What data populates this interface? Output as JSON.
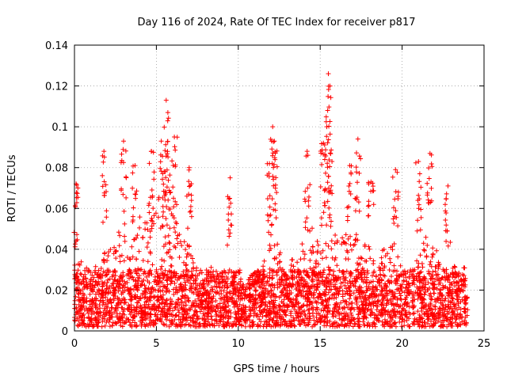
{
  "chart_data": {
    "type": "scatter",
    "title": "Day 116 of 2024, Rate Of TEC Index for receiver p817",
    "xlabel": "GPS time / hours",
    "ylabel": "ROTI / TECUs",
    "xlim": [
      0,
      25
    ],
    "ylim": [
      0,
      0.14
    ],
    "xticks": [
      0,
      5,
      10,
      15,
      20,
      25
    ],
    "xtick_labels": [
      "0",
      "5",
      "10",
      "15",
      "20",
      "25"
    ],
    "yticks": [
      0,
      0.02,
      0.04,
      0.06,
      0.08,
      0.1,
      0.12,
      0.14
    ],
    "ytick_labels": [
      "0",
      "0.02",
      "0.04",
      "0.06",
      "0.08",
      "0.1",
      "0.12",
      "0.14"
    ],
    "grid": true,
    "marker": "+",
    "color": "#ff0000",
    "x_data_range": [
      0,
      24
    ],
    "baseline_band": [
      0.002,
      0.03
    ],
    "profile": [
      [
        0.0,
        0.03
      ],
      [
        0.2,
        0.045
      ],
      [
        0.5,
        0.03
      ],
      [
        1.0,
        0.028
      ],
      [
        1.5,
        0.032
      ],
      [
        2.0,
        0.045
      ],
      [
        2.5,
        0.05
      ],
      [
        3.0,
        0.045
      ],
      [
        3.5,
        0.04
      ],
      [
        4.0,
        0.055
      ],
      [
        4.5,
        0.06
      ],
      [
        5.0,
        0.058
      ],
      [
        5.5,
        0.07
      ],
      [
        6.0,
        0.06
      ],
      [
        6.5,
        0.045
      ],
      [
        7.0,
        0.04
      ],
      [
        7.5,
        0.03
      ],
      [
        8.0,
        0.028
      ],
      [
        8.5,
        0.03
      ],
      [
        9.0,
        0.025
      ],
      [
        9.5,
        0.025
      ],
      [
        10.0,
        0.022
      ],
      [
        10.5,
        0.025
      ],
      [
        11.0,
        0.028
      ],
      [
        11.5,
        0.03
      ],
      [
        12.0,
        0.045
      ],
      [
        12.5,
        0.04
      ],
      [
        13.0,
        0.032
      ],
      [
        13.5,
        0.035
      ],
      [
        14.0,
        0.045
      ],
      [
        14.5,
        0.05
      ],
      [
        15.0,
        0.04
      ],
      [
        15.5,
        0.06
      ],
      [
        16.0,
        0.045
      ],
      [
        16.5,
        0.045
      ],
      [
        17.0,
        0.05
      ],
      [
        17.5,
        0.042
      ],
      [
        18.0,
        0.04
      ],
      [
        18.5,
        0.035
      ],
      [
        19.0,
        0.04
      ],
      [
        19.5,
        0.042
      ],
      [
        20.0,
        0.03
      ],
      [
        20.5,
        0.028
      ],
      [
        21.0,
        0.035
      ],
      [
        21.5,
        0.045
      ],
      [
        22.0,
        0.04
      ],
      [
        22.5,
        0.03
      ],
      [
        23.0,
        0.032
      ],
      [
        23.5,
        0.028
      ],
      [
        24.0,
        0.03
      ]
    ],
    "peaks": [
      {
        "x": 0.1,
        "y": 0.072
      },
      {
        "x": 1.8,
        "y": 0.088
      },
      {
        "x": 3.0,
        "y": 0.093
      },
      {
        "x": 3.7,
        "y": 0.081
      },
      {
        "x": 4.7,
        "y": 0.088
      },
      {
        "x": 5.3,
        "y": 0.093
      },
      {
        "x": 5.6,
        "y": 0.113
      },
      {
        "x": 5.7,
        "y": 0.107
      },
      {
        "x": 6.1,
        "y": 0.095
      },
      {
        "x": 7.0,
        "y": 0.08
      },
      {
        "x": 9.5,
        "y": 0.075
      },
      {
        "x": 11.9,
        "y": 0.082
      },
      {
        "x": 12.1,
        "y": 0.1
      },
      {
        "x": 12.2,
        "y": 0.093
      },
      {
        "x": 14.2,
        "y": 0.088
      },
      {
        "x": 15.2,
        "y": 0.092
      },
      {
        "x": 15.4,
        "y": 0.1
      },
      {
        "x": 15.5,
        "y": 0.126
      },
      {
        "x": 15.6,
        "y": 0.12
      },
      {
        "x": 16.8,
        "y": 0.081
      },
      {
        "x": 17.3,
        "y": 0.094
      },
      {
        "x": 18.1,
        "y": 0.073
      },
      {
        "x": 19.6,
        "y": 0.079
      },
      {
        "x": 21.0,
        "y": 0.083
      },
      {
        "x": 21.7,
        "y": 0.087
      },
      {
        "x": 22.8,
        "y": 0.071
      }
    ]
  }
}
